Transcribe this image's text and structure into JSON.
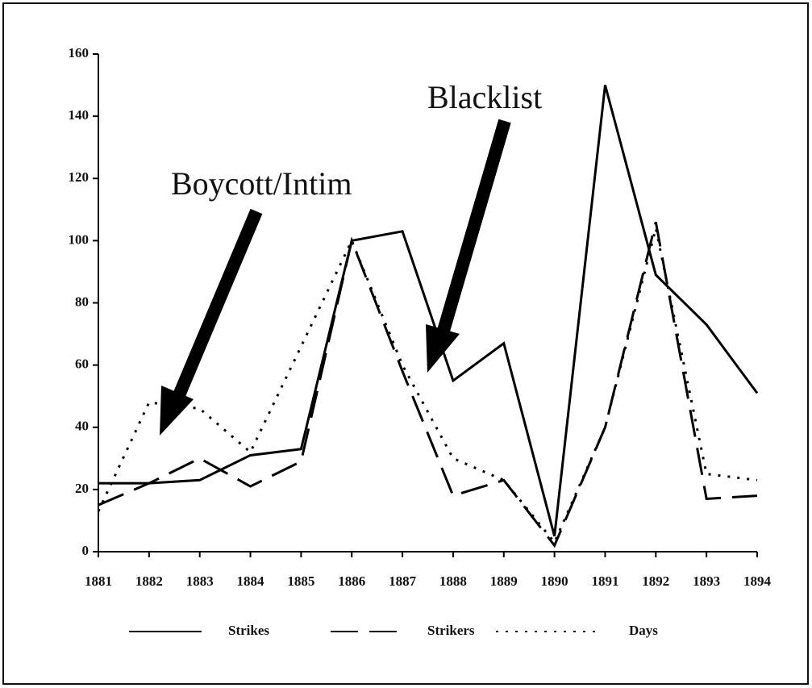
{
  "chart_data": {
    "type": "line",
    "categories": [
      "1881",
      "1882",
      "1883",
      "1884",
      "1885",
      "1886",
      "1887",
      "1888",
      "1889",
      "1890",
      "1891",
      "1892",
      "1893",
      "1894"
    ],
    "series": [
      {
        "name": "Strikes",
        "color": "#000000",
        "style": "solid",
        "values": [
          22,
          22,
          23,
          31,
          33,
          100,
          103,
          55,
          67,
          5,
          150,
          89,
          73,
          51
        ]
      },
      {
        "name": "Strikers",
        "color": "#000000",
        "style": "dashed",
        "values": [
          15,
          22,
          30,
          21,
          29,
          100,
          58,
          18,
          23,
          2,
          40,
          106,
          17,
          18
        ]
      },
      {
        "name": "Days",
        "color": "#000000",
        "style": "dotted",
        "values": [
          13,
          48,
          46,
          32,
          66,
          100,
          60,
          30,
          23,
          3,
          40,
          104,
          25,
          23
        ]
      }
    ],
    "ylim": [
      0,
      160
    ],
    "yticks": [
      0,
      20,
      40,
      60,
      80,
      100,
      120,
      140,
      160
    ],
    "annotations": [
      "Boycott/Intim",
      "Blacklist"
    ],
    "legend": "bottom"
  }
}
